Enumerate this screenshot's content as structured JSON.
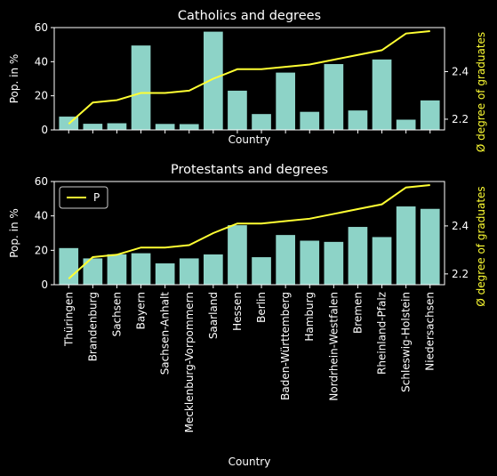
{
  "chart_data": [
    {
      "type": "bar",
      "title": "Catholics and degrees",
      "xlabel": "Country",
      "ylabel": "Pop. in %",
      "y2label": "Ø degree of graduates",
      "ylim": [
        0,
        60
      ],
      "y2lim": [
        2.155,
        2.585
      ],
      "yticks": [
        "0",
        "20",
        "40",
        "60"
      ],
      "y2ticks": [
        "2.2",
        "2.4"
      ],
      "show_xticklabels": false,
      "legend": null,
      "categories": [
        "Thüringen",
        "Brandenburg",
        "Sachsen",
        "Bayern",
        "Sachsen-Anhalt",
        "Mecklenburg-Vorpommern",
        "Saarland",
        "Hessen",
        "Berlin",
        "Baden-Württemberg",
        "Hamburg",
        "Nordrhein-Westfalen",
        "Bremen",
        "Rheinland-Pfalz",
        "Schleswig-Holstein",
        "Niedersachsen"
      ],
      "series": [
        {
          "kind": "bar",
          "values": [
            7.8,
            3.6,
            3.9,
            49.5,
            3.5,
            3.4,
            57.6,
            23.0,
            9.3,
            33.6,
            10.6,
            38.6,
            11.4,
            41.3,
            6.0,
            17.3
          ]
        },
        {
          "kind": "line",
          "axis": "right",
          "values": [
            2.18,
            2.27,
            2.28,
            2.31,
            2.31,
            2.32,
            2.37,
            2.41,
            2.41,
            2.42,
            2.43,
            2.45,
            2.47,
            2.49,
            2.56,
            2.57
          ]
        }
      ],
      "colors": {
        "bar": "#8dd3c7",
        "line": "#ffff33",
        "axis_label2": "#ffff33"
      }
    },
    {
      "type": "bar",
      "title": "Protestants and degrees",
      "xlabel": "Country",
      "ylabel": "Pop. in %",
      "y2label": "Ø degree of graduates",
      "ylim": [
        0,
        60
      ],
      "y2lim": [
        2.155,
        2.585
      ],
      "yticks": [
        "0",
        "20",
        "40",
        "60"
      ],
      "y2ticks": [
        "2.2",
        "2.4"
      ],
      "show_xticklabels": true,
      "legend": {
        "position": "top-left",
        "entries": [
          "P"
        ]
      },
      "categories": [
        "Thüringen",
        "Brandenburg",
        "Sachsen",
        "Bayern",
        "Sachsen-Anhalt",
        "Mecklenburg-Vorpommern",
        "Saarland",
        "Hessen",
        "Berlin",
        "Baden-Württemberg",
        "Hamburg",
        "Nordrhein-Westfalen",
        "Bremen",
        "Rheinland-Pfalz",
        "Schleswig-Holstein",
        "Niedersachsen"
      ],
      "series": [
        {
          "kind": "bar",
          "values": [
            21.3,
            15.3,
            17.7,
            18.3,
            12.4,
            15.3,
            17.6,
            34.6,
            16.0,
            28.9,
            25.6,
            24.9,
            33.6,
            27.7,
            45.5,
            44.1
          ]
        },
        {
          "kind": "line",
          "axis": "right",
          "name": "P",
          "values": [
            2.18,
            2.27,
            2.28,
            2.31,
            2.31,
            2.32,
            2.37,
            2.41,
            2.41,
            2.42,
            2.43,
            2.45,
            2.47,
            2.49,
            2.56,
            2.57
          ]
        }
      ],
      "colors": {
        "bar": "#8dd3c7",
        "line": "#ffff33",
        "axis_label2": "#ffff33"
      }
    }
  ]
}
